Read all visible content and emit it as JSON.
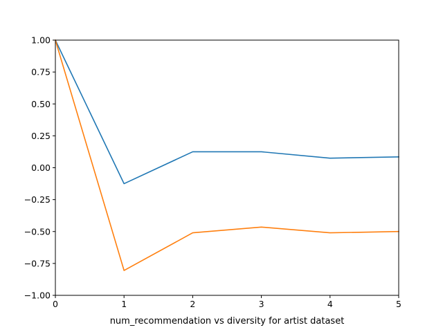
{
  "chart_data": {
    "type": "line",
    "title": "",
    "xlabel": "num_recommendation vs diversity for artist dataset",
    "ylabel": "",
    "xlim": [
      0,
      5
    ],
    "ylim": [
      -1.0,
      1.0
    ],
    "xticks": [
      0,
      1,
      2,
      3,
      4,
      5
    ],
    "xtick_labels": [
      "0",
      "1",
      "2",
      "3",
      "4",
      "5"
    ],
    "yticks": [
      -1.0,
      -0.75,
      -0.5,
      -0.25,
      0.0,
      0.25,
      0.5,
      0.75,
      1.0
    ],
    "ytick_labels": [
      "−1.00",
      "−0.75",
      "−0.50",
      "−0.25",
      "0.00",
      "0.25",
      "0.50",
      "0.75",
      "1.00"
    ],
    "grid": false,
    "legend": "none",
    "x": [
      0,
      1,
      2,
      3,
      4,
      5
    ],
    "series": [
      {
        "color": "#1f77b4",
        "values": [
          1.0,
          -0.125,
          0.125,
          0.125,
          0.075,
          0.085
        ]
      },
      {
        "color": "#ff7f0e",
        "values": [
          1.0,
          -0.805,
          -0.51,
          -0.465,
          -0.51,
          -0.5
        ]
      }
    ]
  }
}
